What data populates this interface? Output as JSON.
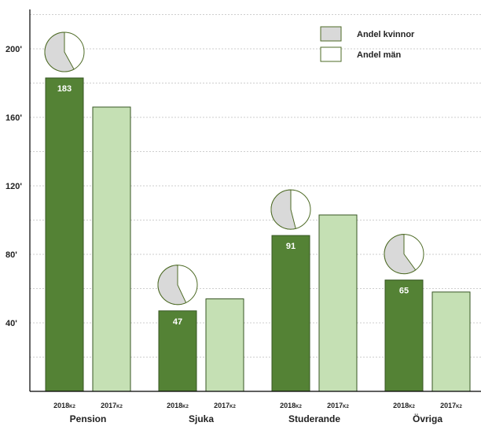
{
  "chart_data": {
    "type": "bar",
    "categories": [
      "Pension",
      "Sjuka",
      "Studerande",
      "Övriga"
    ],
    "period_labels": [
      {
        "main": "2018",
        "sub": "K2"
      },
      {
        "main": "2017",
        "sub": "K2"
      }
    ],
    "series": [
      {
        "values": [
          183,
          47,
          91,
          65
        ],
        "color": "#548235"
      },
      {
        "values": [
          166,
          54,
          103,
          58
        ],
        "color": "#c5e0b4"
      }
    ],
    "data_labels": [
      "183",
      "47",
      "91",
      "65"
    ],
    "share_women": [
      0.58,
      0.57,
      0.54,
      0.6
    ],
    "y_ticks": [
      {
        "value": 40,
        "label": "40'"
      },
      {
        "value": 80,
        "label": "80'"
      },
      {
        "value": 120,
        "label": "120'"
      },
      {
        "value": 160,
        "label": "160'"
      },
      {
        "value": 200,
        "label": "200'"
      }
    ],
    "ylim": [
      0,
      223
    ],
    "grid": true,
    "legend": {
      "placement": "top-right",
      "items": [
        {
          "label": "Andel kvinnor",
          "color": "#d9d9d9"
        },
        {
          "label": "Andel män",
          "color": "#ffffff"
        }
      ]
    },
    "pie_colors": {
      "women": "#d9d9d9",
      "men": "#ffffff",
      "stroke": "#4e6b26"
    }
  }
}
